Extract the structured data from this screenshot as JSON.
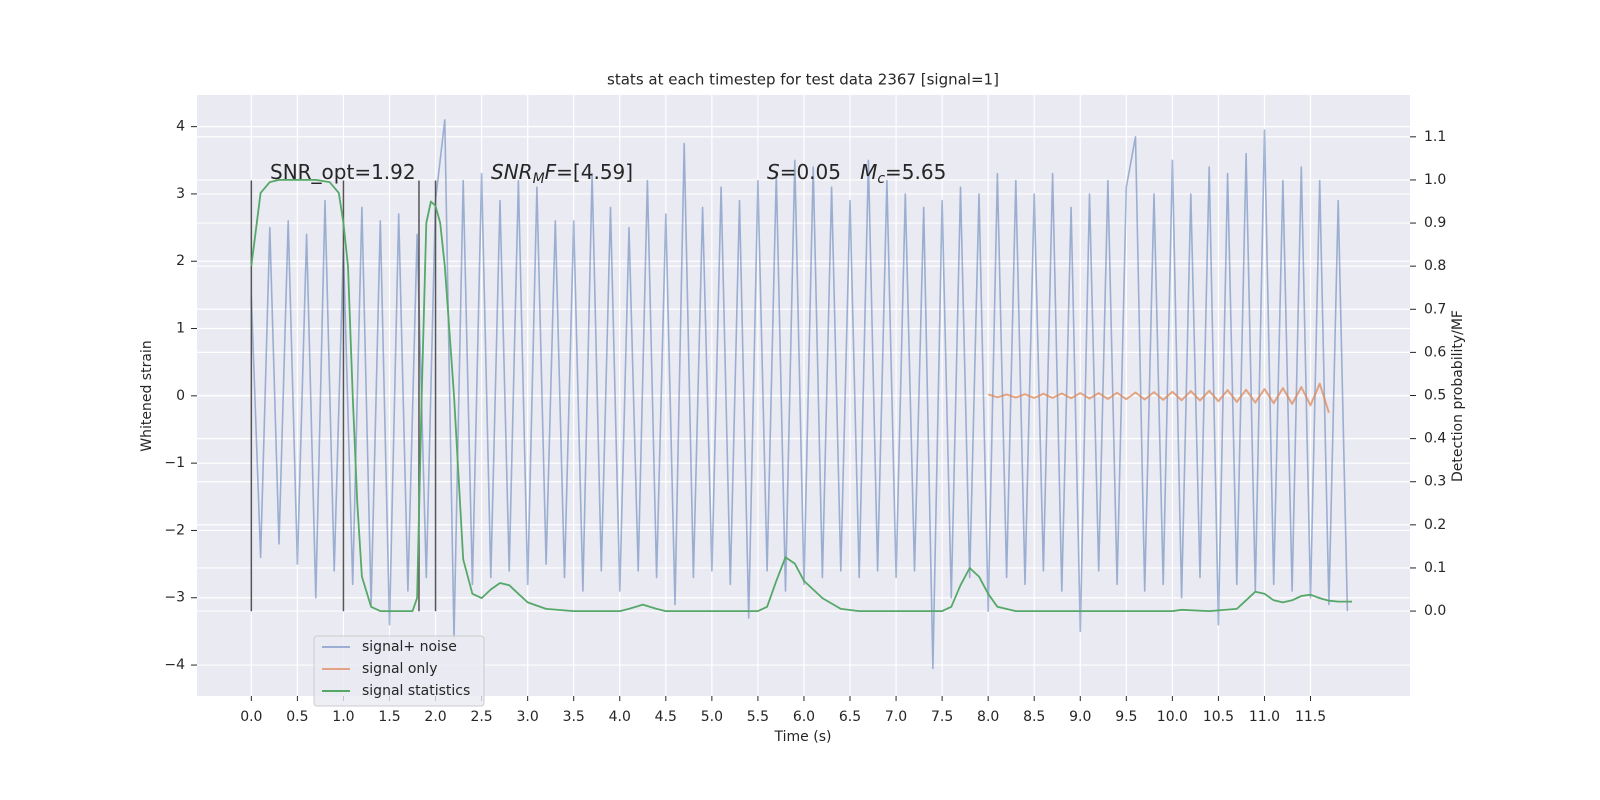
{
  "chart_data": {
    "type": "line",
    "title": "stats at each timestep for test data 2367 [signal=1]",
    "xlabel": "Time (s)",
    "ylabel": "Whitened strain",
    "y2label": "Detection probability/MF",
    "xlim": [
      -0.59,
      12.58
    ],
    "ylim": [
      -4.46,
      4.47
    ],
    "y2lim": [
      -0.197,
      1.197
    ],
    "xticks": [
      {
        "value": 0,
        "label": "0.0"
      },
      {
        "value": 0.5,
        "label": "0.5"
      },
      {
        "value": 1,
        "label": "1.0"
      },
      {
        "value": 1.5,
        "label": "1.5"
      },
      {
        "value": 2,
        "label": "2.0"
      },
      {
        "value": 2.5,
        "label": "2.5"
      },
      {
        "value": 3,
        "label": "3.0"
      },
      {
        "value": 3.5,
        "label": "3.5"
      },
      {
        "value": 4,
        "label": "4.0"
      },
      {
        "value": 4.5,
        "label": "4.5"
      },
      {
        "value": 5,
        "label": "5.0"
      },
      {
        "value": 5.5,
        "label": "5.5"
      },
      {
        "value": 6,
        "label": "6.0"
      },
      {
        "value": 6.5,
        "label": "6.5"
      },
      {
        "value": 7,
        "label": "7.0"
      },
      {
        "value": 7.5,
        "label": "7.5"
      },
      {
        "value": 8,
        "label": "8.0"
      },
      {
        "value": 8.5,
        "label": "8.5"
      },
      {
        "value": 9,
        "label": "9.0"
      },
      {
        "value": 9.5,
        "label": "9.5"
      },
      {
        "value": 10,
        "label": "10.0"
      },
      {
        "value": 10.5,
        "label": "10.5"
      },
      {
        "value": 11,
        "label": "11.0"
      },
      {
        "value": 11.5,
        "label": "11.5"
      }
    ],
    "yticks": [
      {
        "value": -4,
        "label": "−4"
      },
      {
        "value": -3,
        "label": "−3"
      },
      {
        "value": -2,
        "label": "−2"
      },
      {
        "value": -1,
        "label": "−1"
      },
      0,
      1,
      2,
      3,
      4
    ],
    "y2ticks": [
      {
        "value": 0,
        "label": "0.0"
      },
      {
        "value": 0.1,
        "label": "0.1"
      },
      {
        "value": 0.2,
        "label": "0.2"
      },
      {
        "value": 0.3,
        "label": "0.3"
      },
      {
        "value": 0.4,
        "label": "0.4"
      },
      {
        "value": 0.5,
        "label": "0.5"
      },
      {
        "value": 0.6,
        "label": "0.6"
      },
      {
        "value": 0.7,
        "label": "0.7"
      },
      {
        "value": 0.8,
        "label": "0.8"
      },
      {
        "value": 0.9,
        "label": "0.9"
      },
      {
        "value": 1,
        "label": "1.0"
      },
      {
        "value": 1.1,
        "label": "1.1"
      }
    ],
    "grid": true,
    "legend": "lower left",
    "annotations": [
      [
        "SNR_opt=1.92"
      ],
      [
        "SNR",
        "M",
        "F",
        "=[4.59]"
      ],
      [
        "S",
        "=0.05   ",
        "M",
        "c",
        "=5.65"
      ]
    ],
    "vlines": {
      "x": [
        0,
        1.0,
        1.82,
        2.0
      ],
      "ymin": -3.2,
      "ymax": 3.2,
      "color": "#555555"
    },
    "series": [
      {
        "name": "signal+ noise",
        "color": "#4c72b0",
        "x": [
          0,
          0.1,
          0.2,
          0.3,
          0.4,
          0.5,
          0.6,
          0.7,
          0.8,
          0.9,
          1,
          1.1,
          1.2,
          1.3,
          1.4,
          1.5,
          1.6,
          1.7,
          1.8,
          1.9,
          2,
          2.1,
          2.2,
          2.3,
          2.4,
          2.5,
          2.6,
          2.7,
          2.8,
          2.9,
          3,
          3.1,
          3.2,
          3.3,
          3.4,
          3.5,
          3.6,
          3.7,
          3.8,
          3.9,
          4,
          4.1,
          4.2,
          4.3,
          4.4,
          4.5,
          4.6,
          4.7,
          4.8,
          4.9,
          5,
          5.1,
          5.2,
          5.3,
          5.4,
          5.5,
          5.6,
          5.7,
          5.8,
          5.9,
          6,
          6.1,
          6.2,
          6.3,
          6.4,
          6.5,
          6.6,
          6.7,
          6.8,
          6.9,
          7,
          7.1,
          7.2,
          7.3,
          7.4,
          7.5,
          7.6,
          7.7,
          7.8,
          7.9,
          8,
          8.1,
          8.2,
          8.3,
          8.4,
          8.5,
          8.6,
          8.7,
          8.8,
          8.9,
          9,
          9.1,
          9.2,
          9.3,
          9.4,
          9.5,
          9.6,
          9.7,
          9.8,
          9.9,
          10,
          10.1,
          10.2,
          10.3,
          10.4,
          10.5,
          10.6,
          10.7,
          10.8,
          10.9,
          11,
          11.1,
          11.2,
          11.3,
          11.4,
          11.5,
          11.6,
          11.7,
          11.8,
          11.9
        ],
        "values": [
          1.5,
          -2.4,
          2.5,
          -2.2,
          2.6,
          -2.5,
          2.4,
          -3.0,
          2.9,
          -2.6,
          2.2,
          -2.8,
          2.8,
          -3.1,
          2.6,
          -3.4,
          2.7,
          -2.9,
          2.4,
          -2.7,
          2.9,
          4.1,
          -3.6,
          3.2,
          -2.8,
          3.3,
          -2.7,
          2.9,
          -2.6,
          3.2,
          -2.8,
          3.1,
          -2.5,
          2.6,
          -2.7,
          2.6,
          -2.9,
          3.3,
          -2.6,
          2.8,
          -2.9,
          2.5,
          -2.6,
          3.2,
          -2.7,
          2.7,
          -3.1,
          3.75,
          -2.7,
          2.8,
          -2.6,
          3.1,
          -2.8,
          2.9,
          -3.3,
          3.2,
          -2.6,
          3.3,
          -2.9,
          3.5,
          -2.8,
          3.4,
          -2.7,
          3.1,
          -2.6,
          2.9,
          -2.7,
          3.5,
          -2.6,
          3.2,
          -2.7,
          3.0,
          -2.6,
          2.8,
          -4.05,
          2.9,
          -3.0,
          3.1,
          -2.7,
          3.0,
          -3.2,
          3.3,
          -2.7,
          3.2,
          -2.8,
          3.0,
          -2.6,
          3.3,
          -2.9,
          2.8,
          -3.5,
          3.0,
          -2.6,
          3.2,
          -2.8,
          3.1,
          3.85,
          -2.9,
          3.0,
          -2.8,
          3.5,
          -3.0,
          3.0,
          -2.7,
          3.4,
          -3.4,
          3.3,
          -2.8,
          3.6,
          -2.9,
          3.95,
          -2.8,
          3.2,
          -2.9,
          3.4,
          -3.0,
          3.2,
          -3.1,
          2.9,
          -3.2
        ]
      },
      {
        "name": "signal only",
        "color": "#dd8452",
        "x": [
          8,
          8.1,
          8.2,
          8.3,
          8.4,
          8.5,
          8.6,
          8.7,
          8.8,
          8.9,
          9,
          9.1,
          9.2,
          9.3,
          9.4,
          9.5,
          9.6,
          9.7,
          9.8,
          9.9,
          10,
          10.1,
          10.2,
          10.3,
          10.4,
          10.5,
          10.6,
          10.7,
          10.8,
          10.9,
          11,
          11.1,
          11.2,
          11.3,
          11.4,
          11.5,
          11.6,
          11.7
        ],
        "values": [
          0.02,
          -0.02,
          0.02,
          -0.025,
          0.025,
          -0.03,
          0.03,
          -0.03,
          0.035,
          -0.035,
          0.04,
          -0.04,
          0.04,
          -0.045,
          0.045,
          -0.05,
          0.05,
          -0.055,
          0.055,
          -0.06,
          0.06,
          -0.065,
          0.07,
          -0.07,
          0.075,
          -0.08,
          0.085,
          -0.09,
          0.09,
          -0.1,
          0.1,
          -0.11,
          0.115,
          -0.12,
          0.13,
          -0.14,
          0.18,
          -0.25
        ]
      },
      {
        "name": "signal statistics",
        "color": "#55a868",
        "axis": "y2",
        "x": [
          0,
          0.1,
          0.2,
          0.3,
          0.5,
          0.7,
          0.85,
          0.95,
          1.0,
          1.05,
          1.1,
          1.15,
          1.2,
          1.3,
          1.4,
          1.6,
          1.75,
          1.8,
          1.85,
          1.9,
          1.95,
          2.0,
          2.05,
          2.1,
          2.2,
          2.3,
          2.4,
          2.5,
          2.6,
          2.7,
          2.8,
          2.9,
          3.0,
          3.2,
          3.5,
          4.0,
          4.1,
          4.25,
          4.4,
          4.5,
          5.5,
          5.6,
          5.7,
          5.8,
          5.9,
          6.0,
          6.2,
          6.4,
          6.6,
          7.5,
          7.6,
          7.7,
          7.8,
          7.9,
          8.0,
          8.1,
          8.3,
          10.0,
          10.1,
          10.4,
          10.7,
          10.8,
          10.9,
          11.0,
          11.1,
          11.2,
          11.3,
          11.4,
          11.5,
          11.6,
          11.7,
          11.8,
          11.95
        ],
        "values": [
          0.8,
          0.97,
          0.995,
          1.0,
          1.0,
          1.0,
          0.995,
          0.97,
          0.9,
          0.8,
          0.5,
          0.25,
          0.08,
          0.01,
          0.0,
          0.0,
          0.0,
          0.03,
          0.5,
          0.9,
          0.95,
          0.94,
          0.9,
          0.8,
          0.5,
          0.12,
          0.04,
          0.03,
          0.05,
          0.065,
          0.06,
          0.04,
          0.02,
          0.005,
          0.0,
          0.0,
          0.005,
          0.015,
          0.005,
          0.0,
          0.0,
          0.01,
          0.07,
          0.125,
          0.11,
          0.07,
          0.03,
          0.005,
          0.0,
          0.0,
          0.01,
          0.06,
          0.1,
          0.08,
          0.04,
          0.01,
          0.0,
          0.0,
          0.003,
          0.0,
          0.005,
          0.025,
          0.045,
          0.04,
          0.025,
          0.02,
          0.025,
          0.035,
          0.038,
          0.03,
          0.024,
          0.022,
          0.022
        ]
      }
    ]
  }
}
